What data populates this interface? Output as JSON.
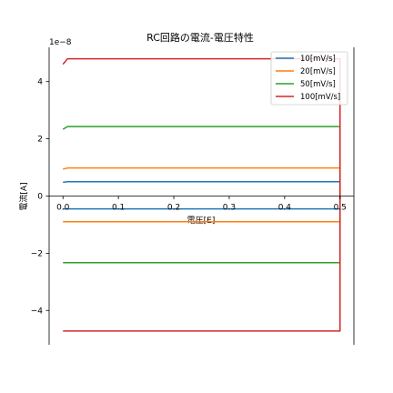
{
  "chart_data": {
    "type": "line",
    "title": "RC回路の電流-電圧特性",
    "xlabel": "電圧[E]",
    "ylabel": "電流[A]",
    "offset_text": "1e−8",
    "x_ticks": [
      "0.0",
      "0.1",
      "0.2",
      "0.3",
      "0.4",
      "0.5"
    ],
    "y_ticks": [
      "−4",
      "−2",
      "0",
      "2",
      "4"
    ],
    "xlim": [
      -0.025,
      0.525
    ],
    "ylim": [
      -5.2,
      5.2
    ],
    "y_scale": 1e-08,
    "legend_position": "top-right",
    "grid": false,
    "series": [
      {
        "name": "10[mV/s]",
        "color": "#1f77b4",
        "upper": 0.5,
        "lower": -0.45,
        "x_start": 0.0,
        "x_end": 0.5
      },
      {
        "name": "20[mV/s]",
        "color": "#ff7f0e",
        "upper": 0.98,
        "lower": -0.9,
        "x_start": 0.0,
        "x_end": 0.5
      },
      {
        "name": "50[mV/s]",
        "color": "#2ca02c",
        "upper": 2.43,
        "lower": -2.33,
        "x_start": 0.0,
        "x_end": 0.5
      },
      {
        "name": "100[mV/s]",
        "color": "#d62728",
        "upper": 4.8,
        "lower": -4.72,
        "x_start": 0.0,
        "x_end": 0.5
      }
    ]
  }
}
